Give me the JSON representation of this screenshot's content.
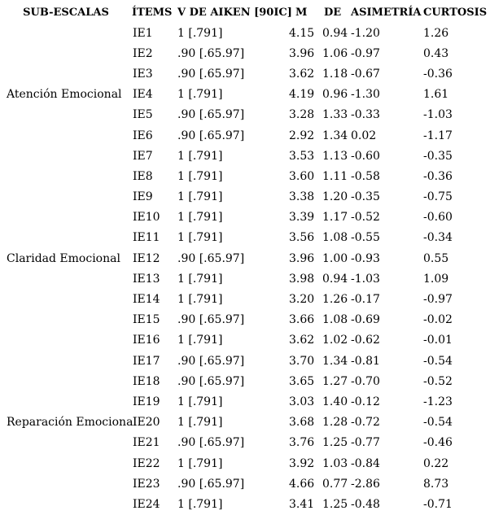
{
  "colors": {
    "background": "#ffffff",
    "text": "#000000"
  },
  "table": {
    "columns": {
      "sub_escala": "SUB-ESCALAS",
      "item": "ÍTEMS",
      "v_aiken": "V DE AIKEN [90IC]",
      "m": "M",
      "de": "DE",
      "asimetria": "ASIMETRÍA",
      "curtosis": "CURTOSIS"
    },
    "rows": [
      {
        "sub_escala": "",
        "item": "IE1",
        "v_aiken": "1 [.791]",
        "m": "4.15",
        "de": "0.94",
        "asimetria": "-1.20",
        "curtosis": "1.26"
      },
      {
        "sub_escala": "",
        "item": "IE2",
        "v_aiken": ".90 [.65.97]",
        "m": "3.96",
        "de": "1.06",
        "asimetria": "-0.97",
        "curtosis": "0.43"
      },
      {
        "sub_escala": "",
        "item": "IE3",
        "v_aiken": ".90 [.65.97]",
        "m": "3.62",
        "de": "1.18",
        "asimetria": "-0.67",
        "curtosis": "-0.36"
      },
      {
        "sub_escala": "Atención Emocional",
        "item": "IE4",
        "v_aiken": "1 [.791]",
        "m": "4.19",
        "de": "0.96",
        "asimetria": "-1.30",
        "curtosis": "1.61"
      },
      {
        "sub_escala": "",
        "item": "IE5",
        "v_aiken": ".90 [.65.97]",
        "m": "3.28",
        "de": "1.33",
        "asimetria": "-0.33",
        "curtosis": "-1.03"
      },
      {
        "sub_escala": "",
        "item": "IE6",
        "v_aiken": ".90 [.65.97]",
        "m": "2.92",
        "de": "1.34",
        "asimetria": "0.02",
        "curtosis": "-1.17"
      },
      {
        "sub_escala": "",
        "item": "IE7",
        "v_aiken": "1 [.791]",
        "m": "3.53",
        "de": "1.13",
        "asimetria": "-0.60",
        "curtosis": "-0.35"
      },
      {
        "sub_escala": "",
        "item": "IE8",
        "v_aiken": "1 [.791]",
        "m": "3.60",
        "de": "1.11",
        "asimetria": "-0.58",
        "curtosis": "-0.36"
      },
      {
        "sub_escala": "",
        "item": "IE9",
        "v_aiken": "1 [.791]",
        "m": "3.38",
        "de": "1.20",
        "asimetria": "-0.35",
        "curtosis": "-0.75"
      },
      {
        "sub_escala": "",
        "item": "IE10",
        "v_aiken": "1 [.791]",
        "m": "3.39",
        "de": "1.17",
        "asimetria": "-0.52",
        "curtosis": "-0.60"
      },
      {
        "sub_escala": "",
        "item": "IE11",
        "v_aiken": "1 [.791]",
        "m": "3.56",
        "de": "1.08",
        "asimetria": "-0.55",
        "curtosis": "-0.34"
      },
      {
        "sub_escala": "Claridad Emocional",
        "item": "IE12",
        "v_aiken": ".90 [.65.97]",
        "m": "3.96",
        "de": "1.00",
        "asimetria": "-0.93",
        "curtosis": "0.55"
      },
      {
        "sub_escala": "",
        "item": "IE13",
        "v_aiken": "1 [.791]",
        "m": "3.98",
        "de": "0.94",
        "asimetria": "-1.03",
        "curtosis": "1.09"
      },
      {
        "sub_escala": "",
        "item": "IE14",
        "v_aiken": "1 [.791]",
        "m": "3.20",
        "de": "1.26",
        "asimetria": "-0.17",
        "curtosis": "-0.97"
      },
      {
        "sub_escala": "",
        "item": "IE15",
        "v_aiken": ".90 [.65.97]",
        "m": "3.66",
        "de": "1.08",
        "asimetria": "-0.69",
        "curtosis": "-0.02"
      },
      {
        "sub_escala": "",
        "item": "IE16",
        "v_aiken": "1 [.791]",
        "m": "3.62",
        "de": "1.02",
        "asimetria": "-0.62",
        "curtosis": "-0.01"
      },
      {
        "sub_escala": "",
        "item": "IE17",
        "v_aiken": ".90 [.65.97]",
        "m": "3.70",
        "de": "1.34",
        "asimetria": "-0.81",
        "curtosis": "-0.54"
      },
      {
        "sub_escala": "",
        "item": "IE18",
        "v_aiken": ".90 [.65.97]",
        "m": "3.65",
        "de": "1.27",
        "asimetria": "-0.70",
        "curtosis": "-0.52"
      },
      {
        "sub_escala": "",
        "item": "IE19",
        "v_aiken": "1 [.791]",
        "m": "3.03",
        "de": "1.40",
        "asimetria": "-0.12",
        "curtosis": "-1.23"
      },
      {
        "sub_escala": "Reparación Emocional",
        "item": "IE20",
        "v_aiken": "1 [.791]",
        "m": "3.68",
        "de": "1.28",
        "asimetria": "-0.72",
        "curtosis": "-0.54"
      },
      {
        "sub_escala": "",
        "item": "IE21",
        "v_aiken": ".90 [.65.97]",
        "m": "3.76",
        "de": "1.25",
        "asimetria": "-0.77",
        "curtosis": "-0.46"
      },
      {
        "sub_escala": "",
        "item": "IE22",
        "v_aiken": "1 [.791]",
        "m": "3.92",
        "de": "1.03",
        "asimetria": "-0.84",
        "curtosis": "0.22"
      },
      {
        "sub_escala": "",
        "item": "IE23",
        "v_aiken": ".90 [.65.97]",
        "m": "4.66",
        "de": "0.77",
        "asimetria": "-2.86",
        "curtosis": "8.73"
      },
      {
        "sub_escala": "",
        "item": "IE24",
        "v_aiken": "1 [.791]",
        "m": "3.41",
        "de": "1.25",
        "asimetria": "-0.48",
        "curtosis": "-0.71"
      }
    ]
  }
}
